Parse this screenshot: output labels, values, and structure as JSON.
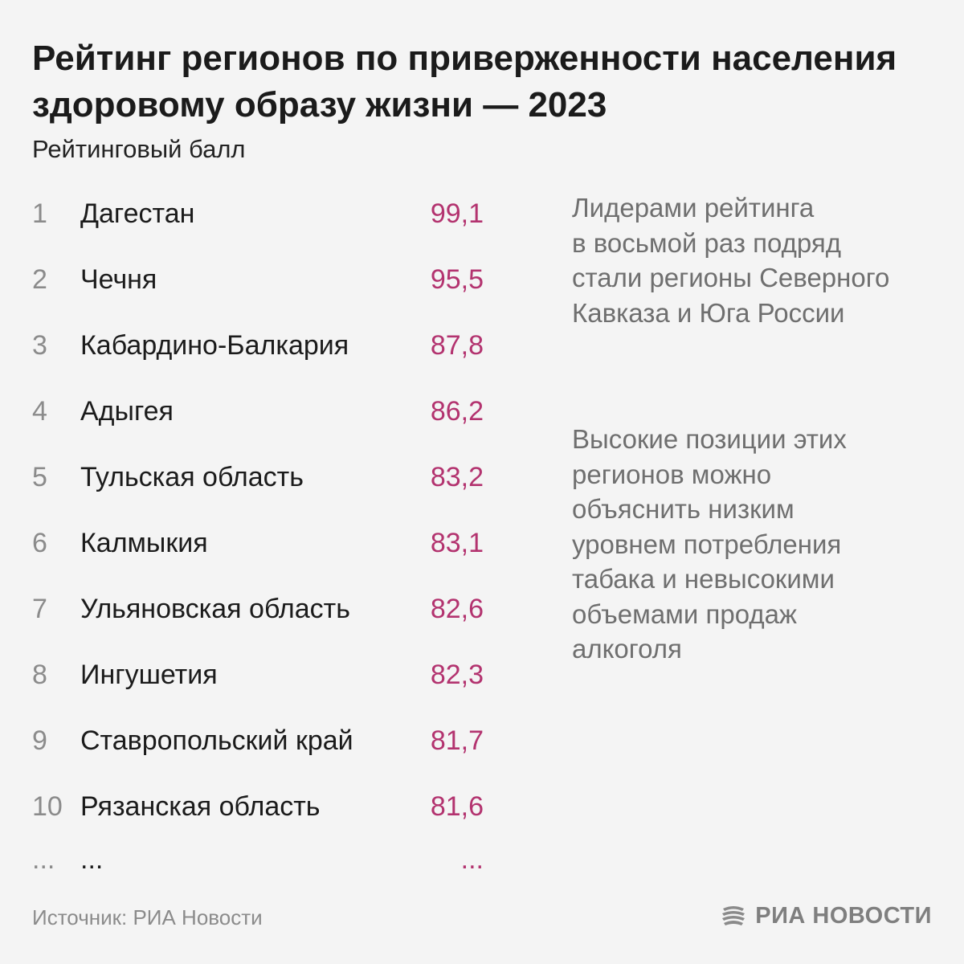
{
  "colors": {
    "background": "#f4f4f4",
    "value": "#b3336f",
    "rank": "#8b8b8b",
    "note": "#6f6f6f"
  },
  "header": {
    "title": "Рейтинг регионов по приверженности населения здоровому образу жизни — 2023",
    "subtitle": "Рейтинговый балл"
  },
  "chart_data": {
    "type": "table",
    "title": "Рейтинг регионов по приверженности населения здоровому образу жизни — 2023",
    "ylabel": "Рейтинговый балл",
    "columns": [
      "rank",
      "region",
      "score"
    ],
    "rows": [
      {
        "rank": "1",
        "region": "Дагестан",
        "score": "99,1"
      },
      {
        "rank": "2",
        "region": "Чечня",
        "score": "95,5"
      },
      {
        "rank": "3",
        "region": "Кабардино-Балкария",
        "score": "87,8"
      },
      {
        "rank": "4",
        "region": "Адыгея",
        "score": "86,2"
      },
      {
        "rank": "5",
        "region": "Тульская область",
        "score": "83,2"
      },
      {
        "rank": "6",
        "region": "Калмыкия",
        "score": "83,1"
      },
      {
        "rank": "7",
        "region": "Ульяновская область",
        "score": "82,6"
      },
      {
        "rank": "8",
        "region": "Ингушетия",
        "score": "82,3"
      },
      {
        "rank": "9",
        "region": "Ставропольский край",
        "score": "81,7"
      },
      {
        "rank": "10",
        "region": "Рязанская область",
        "score": "81,6"
      }
    ],
    "ellipsis": {
      "rank": "...",
      "region": "...",
      "score": "..."
    }
  },
  "notes": {
    "note1": [
      "Лидерами рейтинга",
      "в восьмой раз подряд",
      "стали регионы Северного",
      "Кавказа и Юга России"
    ],
    "note2": [
      "Высокие позиции этих",
      "регионов можно",
      "объяснить низким",
      "уровнем потребления",
      "табака и невысокими",
      "объемами продаж",
      "алкоголя"
    ]
  },
  "footer": {
    "source": "Источник: РИА Новости",
    "logo_text": "РИА НОВОСТИ",
    "logo_icon": "ria-novosti-logo-icon"
  }
}
